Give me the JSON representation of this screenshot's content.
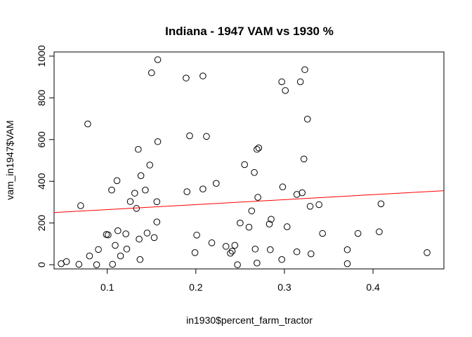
{
  "chart_data": {
    "type": "scatter",
    "title": "Indiana - 1947 VAM vs 1930 %",
    "xlabel": "in1930$percent_farm_tractor",
    "ylabel": "vam_in1947$VAM",
    "xlim": [
      0.04,
      0.48
    ],
    "ylim": [
      -20,
      1020
    ],
    "x_ticks": [
      0.1,
      0.2,
      0.3,
      0.4
    ],
    "x_tick_labels": [
      "0.1",
      "0.2",
      "0.3",
      "0.4"
    ],
    "y_ticks": [
      0,
      200,
      400,
      600,
      800,
      1000
    ],
    "y_tick_labels": [
      "0",
      "200",
      "400",
      "600",
      "800",
      "1000"
    ],
    "grid": false,
    "point_style": "open-circle",
    "regression_line": {
      "color": "#ff0000",
      "points": [
        [
          0.04,
          250
        ],
        [
          0.48,
          355
        ]
      ]
    },
    "points": [
      [
        0.048,
        5
      ],
      [
        0.054,
        15
      ],
      [
        0.068,
        2
      ],
      [
        0.07,
        283
      ],
      [
        0.078,
        675
      ],
      [
        0.08,
        42
      ],
      [
        0.088,
        0
      ],
      [
        0.09,
        73
      ],
      [
        0.099,
        145
      ],
      [
        0.101,
        143
      ],
      [
        0.105,
        358
      ],
      [
        0.106,
        2
      ],
      [
        0.109,
        93
      ],
      [
        0.111,
        403
      ],
      [
        0.112,
        163
      ],
      [
        0.115,
        42
      ],
      [
        0.121,
        148
      ],
      [
        0.122,
        75
      ],
      [
        0.126,
        303
      ],
      [
        0.131,
        343
      ],
      [
        0.133,
        270
      ],
      [
        0.135,
        553
      ],
      [
        0.136,
        123
      ],
      [
        0.137,
        25
      ],
      [
        0.138,
        427
      ],
      [
        0.143,
        358
      ],
      [
        0.145,
        152
      ],
      [
        0.148,
        478
      ],
      [
        0.15,
        920
      ],
      [
        0.153,
        130
      ],
      [
        0.156,
        205
      ],
      [
        0.157,
        983
      ],
      [
        0.156,
        302
      ],
      [
        0.157,
        590
      ],
      [
        0.189,
        895
      ],
      [
        0.19,
        350
      ],
      [
        0.193,
        618
      ],
      [
        0.199,
        58
      ],
      [
        0.201,
        142
      ],
      [
        0.208,
        905
      ],
      [
        0.208,
        363
      ],
      [
        0.212,
        615
      ],
      [
        0.218,
        105
      ],
      [
        0.223,
        390
      ],
      [
        0.234,
        88
      ],
      [
        0.239,
        55
      ],
      [
        0.241,
        65
      ],
      [
        0.244,
        93
      ],
      [
        0.247,
        0
      ],
      [
        0.25,
        200
      ],
      [
        0.255,
        480
      ],
      [
        0.26,
        180
      ],
      [
        0.263,
        258
      ],
      [
        0.266,
        442
      ],
      [
        0.267,
        75
      ],
      [
        0.269,
        553
      ],
      [
        0.269,
        8
      ],
      [
        0.27,
        323
      ],
      [
        0.271,
        560
      ],
      [
        0.283,
        195
      ],
      [
        0.285,
        218
      ],
      [
        0.284,
        72
      ],
      [
        0.297,
        25
      ],
      [
        0.298,
        373
      ],
      [
        0.297,
        877
      ],
      [
        0.301,
        835
      ],
      [
        0.303,
        182
      ],
      [
        0.314,
        62
      ],
      [
        0.314,
        337
      ],
      [
        0.318,
        877
      ],
      [
        0.32,
        345
      ],
      [
        0.322,
        507
      ],
      [
        0.323,
        935
      ],
      [
        0.326,
        698
      ],
      [
        0.329,
        280
      ],
      [
        0.33,
        52
      ],
      [
        0.339,
        288
      ],
      [
        0.343,
        150
      ],
      [
        0.371,
        5
      ],
      [
        0.371,
        72
      ],
      [
        0.383,
        150
      ],
      [
        0.407,
        158
      ],
      [
        0.409,
        292
      ],
      [
        0.461,
        58
      ]
    ]
  }
}
